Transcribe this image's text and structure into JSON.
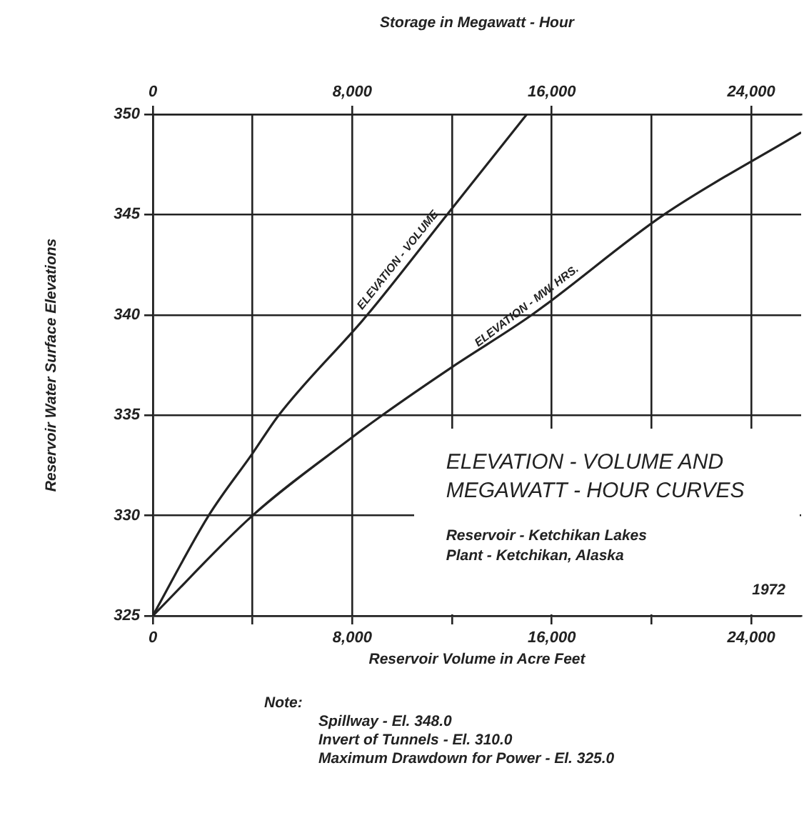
{
  "chart_data": {
    "type": "line",
    "title": "ELEVATION - VOLUME AND MEGAWATT - HOUR CURVES",
    "xlabel": "Reservoir Volume in Acre Feet",
    "x2label": "Storage in Megawatt - Hour",
    "ylabel": "Reservoir Water Surface Elevations",
    "xlim": [
      0,
      26000
    ],
    "xticks": [
      0,
      {
        "value": 4000,
        "label": null
      },
      {
        "value": 8000,
        "label": "8,000"
      },
      {
        "value": 12000,
        "label": null
      },
      {
        "value": 16000,
        "label": "16,000"
      },
      {
        "value": 20000,
        "label": null
      },
      {
        "value": 24000,
        "label": "24,000"
      }
    ],
    "x2lim": [
      0,
      26000
    ],
    "x2ticks": [
      0,
      {
        "value": 8000,
        "label": "8,000"
      },
      {
        "value": 16000,
        "label": "16,000"
      },
      {
        "value": 24000,
        "label": "24,000"
      }
    ],
    "ylim": [
      325,
      350
    ],
    "yticks": [
      325,
      330,
      335,
      340,
      345,
      350
    ],
    "grid": true,
    "marker": "none",
    "line_style": "solid",
    "series": [
      {
        "name": "ELEVATION - VOLUME",
        "color": "#222222",
        "x": [
          0,
          2240,
          4000,
          5050,
          8600,
          11800,
          15000
        ],
        "values": [
          325,
          330,
          333.1,
          335,
          340,
          345,
          350
        ]
      },
      {
        "name": "ELEVATION - MW. HRS.",
        "color": "#222222",
        "axis": "x2",
        "x": [
          0,
          4000,
          8000,
          9200,
          12000,
          15200,
          20500,
          26000
        ],
        "values": [
          325,
          330,
          333.9,
          335,
          337.4,
          340,
          345,
          349.1
        ]
      }
    ],
    "annotations": [
      "Reservoir - Ketchikan Lakes",
      "Plant - Ketchikan, Alaska",
      "1972",
      "Note:",
      "Spillway - El. 348.0",
      "Invert of Tunnels - El. 310.0",
      "Maximum Drawdown for Power - El. 325.0"
    ]
  }
}
